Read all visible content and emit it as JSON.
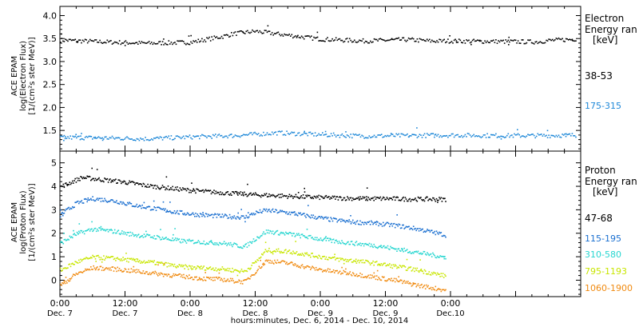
{
  "colors": {
    "axis": "#000000",
    "electron_38_53": "#000000",
    "electron_175_315": "#1e88d8",
    "proton_47_68": "#000000",
    "proton_115_195": "#1a6fd0",
    "proton_310_580": "#27d6d0",
    "proton_795_1193": "#c8e600",
    "proton_1060_1900": "#f08a10"
  },
  "chart_data": [
    {
      "type": "scatter",
      "panel": "electron",
      "ylabel_lines": [
        "ACE EPAM",
        "log(Electron Flux)",
        "[1/(cm²s ster MeV)]"
      ],
      "yticks": [
        "4.0",
        "3.5",
        "3.0",
        "2.5",
        "2.0",
        "1.5"
      ],
      "ylim": [
        1.05,
        4.2
      ],
      "xlim": [
        0,
        96
      ],
      "legend_title_lines": [
        "Electron",
        "Energy ran",
        "[keV]"
      ],
      "series": [
        {
          "name": "38-53",
          "color_key": "electron_38_53",
          "x": [
            0,
            8,
            16,
            24,
            30,
            32,
            36,
            48,
            56,
            64,
            68,
            72,
            80,
            88,
            90,
            95
          ],
          "y": [
            3.48,
            3.44,
            3.41,
            3.43,
            3.56,
            3.62,
            3.67,
            3.5,
            3.46,
            3.49,
            3.46,
            3.46,
            3.45,
            3.44,
            3.47,
            3.5
          ]
        },
        {
          "name": "175-315",
          "color_key": "electron_175_315",
          "x": [
            0,
            8,
            16,
            24,
            32,
            40,
            48,
            56,
            64,
            72,
            80,
            88,
            95
          ],
          "y": [
            1.36,
            1.35,
            1.33,
            1.37,
            1.4,
            1.46,
            1.42,
            1.39,
            1.4,
            1.41,
            1.4,
            1.4,
            1.41
          ]
        }
      ]
    },
    {
      "type": "scatter",
      "panel": "proton",
      "ylabel_lines": [
        "ACE EPAM",
        "log(Proton Flux)",
        "[1/(cm²s ster MeV)]"
      ],
      "yticks": [
        "5",
        "4",
        "3",
        "2",
        "1",
        "0"
      ],
      "ylim": [
        -0.7,
        5.5
      ],
      "xlim": [
        0,
        96
      ],
      "xticks": [
        {
          "x": 0,
          "time": "0:00",
          "date": "Dec. 7"
        },
        {
          "x": 12,
          "time": "12:00",
          "date": "Dec. 7"
        },
        {
          "x": 24,
          "time": "0:00",
          "date": "Dec. 8"
        },
        {
          "x": 36,
          "time": "12:00",
          "date": "Dec. 8"
        },
        {
          "x": 48,
          "time": "0:00",
          "date": "Dec. 9"
        },
        {
          "x": 60,
          "time": "12:00",
          "date": "Dec. 9"
        },
        {
          "x": 72,
          "time": "0:00",
          "date": "Dec.10"
        }
      ],
      "xlabel": "hours:minutes, Dec. 6, 2014 - Dec. 10, 2014",
      "legend_title_lines": [
        "Proton",
        "Energy ran",
        "[keV]"
      ],
      "series": [
        {
          "name": "47-68",
          "color_key": "proton_47_68",
          "x": [
            0,
            4,
            8,
            12,
            16,
            20,
            24,
            28,
            32,
            36,
            40,
            44,
            48,
            52,
            56,
            60,
            64,
            68,
            71
          ],
          "y": [
            4.0,
            4.4,
            4.3,
            4.2,
            4.05,
            3.95,
            3.85,
            3.78,
            3.72,
            3.66,
            3.63,
            3.58,
            3.55,
            3.52,
            3.5,
            3.5,
            3.48,
            3.48,
            3.47
          ]
        },
        {
          "name": "115-195",
          "color_key": "proton_115_195",
          "x": [
            0,
            3,
            6,
            10,
            14,
            18,
            22,
            26,
            30,
            34,
            36,
            38,
            42,
            46,
            50,
            54,
            58,
            62,
            66,
            71
          ],
          "y": [
            2.8,
            3.3,
            3.5,
            3.4,
            3.2,
            3.05,
            2.9,
            2.8,
            2.75,
            2.7,
            2.9,
            3.0,
            2.9,
            2.75,
            2.6,
            2.5,
            2.45,
            2.35,
            2.2,
            1.95
          ]
        },
        {
          "name": "310-580",
          "color_key": "proton_310_580",
          "x": [
            0,
            3,
            6,
            10,
            14,
            18,
            22,
            26,
            30,
            34,
            36,
            38,
            42,
            46,
            50,
            54,
            58,
            62,
            66,
            71
          ],
          "y": [
            1.6,
            2.0,
            2.2,
            2.1,
            1.95,
            1.85,
            1.7,
            1.65,
            1.6,
            1.45,
            1.8,
            2.1,
            2.0,
            1.85,
            1.7,
            1.6,
            1.5,
            1.35,
            1.2,
            1.0
          ]
        },
        {
          "name": "795-1193",
          "color_key": "proton_795_1193",
          "x": [
            0,
            3,
            6,
            10,
            14,
            18,
            22,
            26,
            30,
            34,
            36,
            38,
            42,
            46,
            50,
            54,
            58,
            62,
            66,
            71
          ],
          "y": [
            0.45,
            0.8,
            1.0,
            0.95,
            0.85,
            0.75,
            0.6,
            0.55,
            0.5,
            0.4,
            0.8,
            1.3,
            1.25,
            1.1,
            0.95,
            0.85,
            0.75,
            0.6,
            0.45,
            0.2
          ]
        },
        {
          "name": "1060-1900",
          "color_key": "proton_1060_1900",
          "x": [
            0,
            3,
            6,
            10,
            14,
            18,
            22,
            26,
            30,
            34,
            36,
            38,
            42,
            46,
            50,
            54,
            58,
            62,
            66,
            71
          ],
          "y": [
            -0.2,
            0.3,
            0.55,
            0.5,
            0.4,
            0.3,
            0.2,
            0.1,
            0.05,
            -0.05,
            0.4,
            0.85,
            0.75,
            0.55,
            0.4,
            0.3,
            0.15,
            0.0,
            -0.2,
            -0.4
          ]
        }
      ]
    }
  ]
}
